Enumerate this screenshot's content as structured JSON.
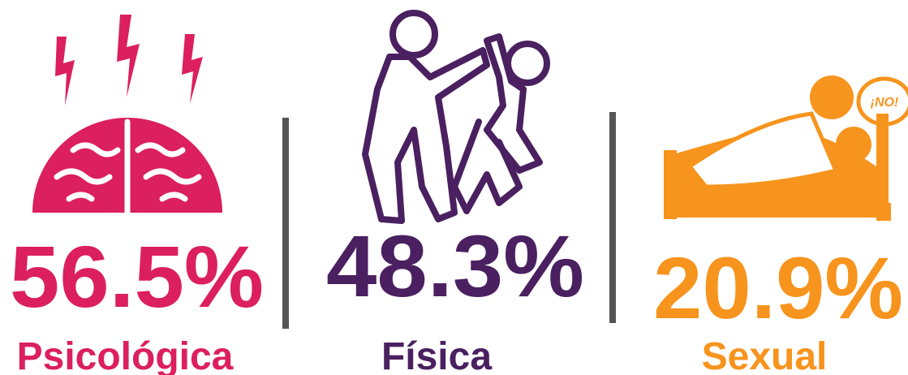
{
  "items": [
    {
      "value": "56.5%",
      "label": "Psicológica"
    },
    {
      "value": "48.3%",
      "label": "Física"
    },
    {
      "value": "20.9%",
      "label": "Sexual"
    }
  ],
  "bubble": "¡NO!"
}
